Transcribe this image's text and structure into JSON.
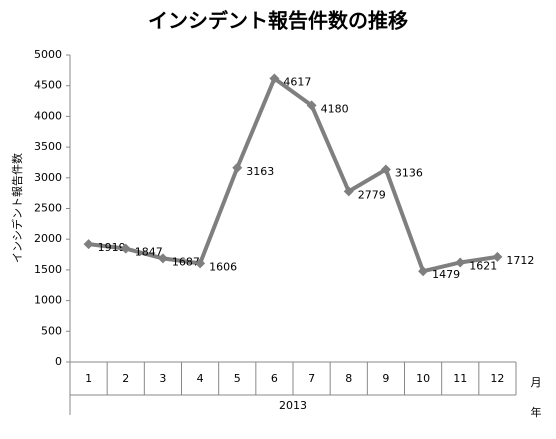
{
  "chart_data": {
    "type": "line",
    "title": "インシデント報告件数の推移",
    "y_label": "インシデント報告件数",
    "x_label_month": "月",
    "x_label_year": "年",
    "group_label": "2013",
    "categories": [
      "1",
      "2",
      "3",
      "4",
      "5",
      "6",
      "7",
      "8",
      "9",
      "10",
      "11",
      "12"
    ],
    "series": [
      {
        "color": "#7f7f7f",
        "values": [
          1919,
          1847,
          1687,
          1606,
          3163,
          4617,
          4180,
          2779,
          3136,
          1479,
          1621,
          1712
        ]
      }
    ],
    "ylim": [
      0,
      5000
    ],
    "yticks": [
      0,
      500,
      1000,
      1500,
      2000,
      2500,
      3000,
      3500,
      4000,
      4500,
      5000
    ],
    "grid": false
  }
}
